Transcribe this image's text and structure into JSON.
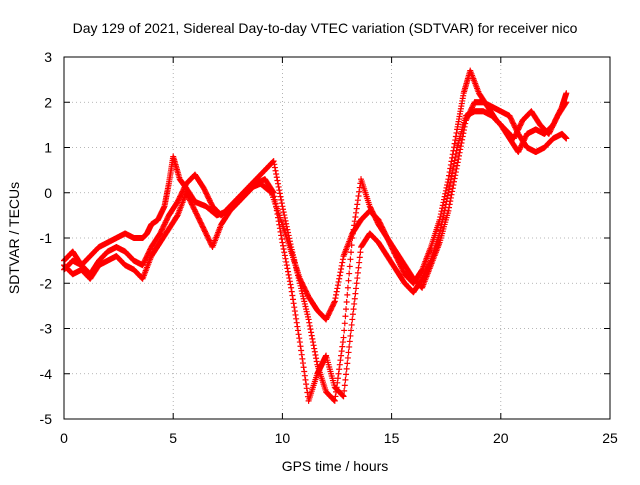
{
  "chart_data": {
    "type": "scatter",
    "title": "Day 129 of 2021, Sidereal Day-to-day VTEC variation (SDTVAR) for receiver nico",
    "xlabel": "GPS time / hours",
    "ylabel": "SDTVAR / TECUs",
    "xlim": [
      0,
      25
    ],
    "ylim": [
      -5,
      3
    ],
    "x_ticks": [
      0,
      5,
      10,
      15,
      20,
      25
    ],
    "x_tick_labels": [
      "0",
      "5",
      "10",
      "15",
      "20",
      "25"
    ],
    "y_ticks": [
      -5,
      -4,
      -3,
      -2,
      -1,
      0,
      1,
      2,
      3
    ],
    "y_tick_labels": [
      "-5",
      "-4",
      "-3",
      "-2",
      "-1",
      "0",
      "1",
      "2",
      "3"
    ],
    "grid": true,
    "grid_style": "dotted",
    "legend": "none",
    "marker": "plus",
    "color": "#ff0000",
    "series": [
      {
        "x": [
          0,
          0.4,
          0.8,
          1.2,
          1.6,
          2.0,
          2.4,
          2.8,
          3.2,
          3.6,
          3.8,
          4.0,
          4.3,
          4.6,
          4.8,
          5.0,
          5.3,
          5.6,
          6.0,
          6.5,
          7.0,
          7.5,
          8.0,
          8.5,
          9.0,
          9.5,
          10.0,
          10.4,
          10.8,
          11.2,
          11.6,
          12.0,
          12.4,
          12.8,
          13.2,
          13.6,
          14.0,
          14.4,
          14.8,
          15.2,
          15.6,
          16.0,
          16.4,
          16.8,
          17.2,
          17.6,
          18.0,
          18.3,
          18.6,
          19.0,
          19.4,
          19.8,
          20.2,
          20.6,
          21.0,
          21.4,
          21.8,
          22.2,
          22.6,
          23.0
        ],
        "y": [
          -1.7,
          -1.5,
          -1.6,
          -1.4,
          -1.2,
          -1.1,
          -1.0,
          -0.9,
          -1.0,
          -1.0,
          -0.9,
          -0.7,
          -0.6,
          -0.3,
          0.2,
          0.8,
          0.3,
          0.1,
          -0.2,
          -0.3,
          -0.5,
          -0.4,
          -0.2,
          0.1,
          0.2,
          0.0,
          -0.7,
          -1.3,
          -1.9,
          -2.3,
          -2.6,
          -2.8,
          -2.4,
          -1.4,
          -0.9,
          -0.6,
          -0.4,
          -0.6,
          -1.0,
          -1.4,
          -1.8,
          -2.0,
          -1.7,
          -1.2,
          -0.6,
          0.3,
          1.4,
          2.2,
          2.7,
          2.2,
          1.9,
          1.6,
          1.4,
          1.2,
          1.6,
          1.8,
          1.5,
          1.3,
          1.7,
          2.0
        ]
      },
      {
        "x": [
          0,
          0.4,
          0.8,
          1.2,
          1.6,
          2.0,
          2.4,
          2.8,
          3.2,
          3.6,
          4.0,
          4.4,
          4.8,
          5.2,
          5.6,
          6.0,
          6.4,
          6.8,
          7.2,
          7.6,
          8.0,
          8.4,
          8.8,
          9.2,
          9.6,
          10.0,
          10.4,
          10.8,
          11.2,
          11.6,
          12.0,
          12.4,
          12.8,
          13.2,
          13.6,
          14.0,
          14.4,
          14.8,
          15.2,
          15.6,
          16.0,
          16.4,
          16.8,
          17.2,
          17.6,
          18.0,
          18.4,
          18.8,
          19.2,
          19.6,
          20.0,
          20.4,
          20.8,
          21.2,
          21.6,
          22.0,
          22.4,
          22.8,
          23.0
        ],
        "y": [
          -1.5,
          -1.3,
          -1.6,
          -1.8,
          -1.5,
          -1.3,
          -1.2,
          -1.3,
          -1.5,
          -1.6,
          -1.2,
          -0.9,
          -0.5,
          -0.2,
          0.2,
          0.4,
          0.1,
          -0.3,
          -0.5,
          -0.3,
          -0.1,
          0.1,
          0.3,
          0.5,
          0.7,
          -0.3,
          -1.2,
          -2.0,
          -2.8,
          -3.8,
          -4.4,
          -4.6,
          -3.2,
          -1.0,
          0.3,
          -0.3,
          -0.7,
          -1.0,
          -1.3,
          -1.6,
          -1.9,
          -2.1,
          -1.6,
          -1.1,
          -0.4,
          0.6,
          1.6,
          2.0,
          2.0,
          1.9,
          1.8,
          1.7,
          1.3,
          1.0,
          0.9,
          1.0,
          1.2,
          1.3,
          1.2
        ]
      },
      {
        "x": [
          0,
          0.4,
          0.8,
          1.2,
          1.6,
          2.0,
          2.4,
          2.8,
          3.2,
          3.6,
          4.0,
          4.4,
          4.8,
          5.2,
          5.6,
          6.0,
          6.4,
          6.8,
          7.2,
          7.6,
          8.0,
          8.4,
          8.8,
          9.2,
          9.6,
          10.0,
          10.4,
          10.8,
          11.2,
          11.6,
          11.8,
          12.0,
          12.4,
          12.8,
          13.2,
          13.6,
          14.0,
          14.4,
          14.8,
          15.2,
          15.6,
          16.0,
          16.4,
          16.8,
          17.2,
          17.6,
          18.0,
          18.4,
          18.8,
          19.2,
          19.6,
          20.0,
          20.4,
          20.8,
          21.2,
          21.6,
          22.0,
          22.4,
          22.8,
          23.0
        ],
        "y": [
          -1.6,
          -1.8,
          -1.7,
          -1.9,
          -1.6,
          -1.5,
          -1.4,
          -1.6,
          -1.7,
          -1.9,
          -1.4,
          -1.1,
          -0.8,
          -0.5,
          0.0,
          -0.4,
          -0.8,
          -1.2,
          -0.7,
          -0.4,
          -0.2,
          0.0,
          0.2,
          0.3,
          0.0,
          -1.1,
          -2.1,
          -3.3,
          -4.6,
          -4.0,
          -3.8,
          -3.6,
          -4.3,
          -4.5,
          -2.8,
          -1.2,
          -0.9,
          -1.1,
          -1.4,
          -1.7,
          -2.0,
          -2.2,
          -1.9,
          -1.5,
          -0.9,
          0.0,
          1.0,
          1.7,
          1.8,
          1.8,
          1.7,
          1.5,
          1.2,
          0.9,
          1.3,
          1.4,
          1.3,
          1.5,
          1.9,
          2.2
        ]
      }
    ]
  }
}
